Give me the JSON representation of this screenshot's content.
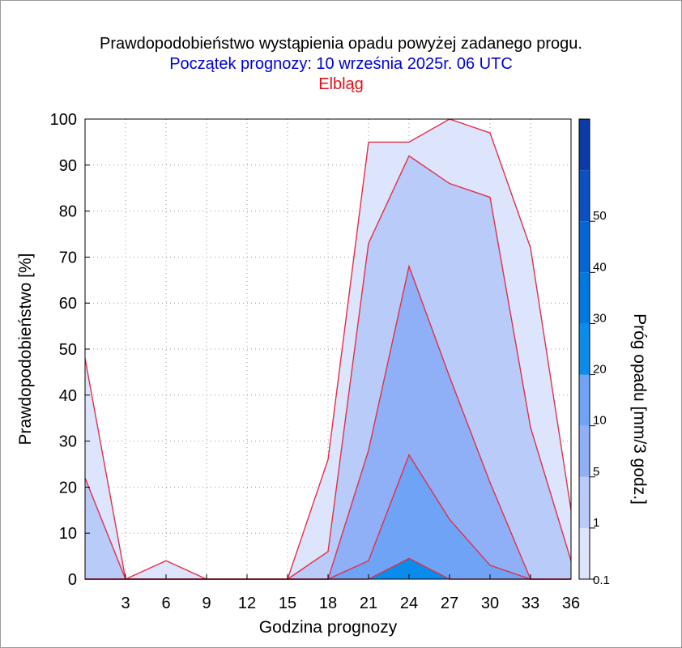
{
  "chart_data": {
    "type": "area",
    "title": "Prawdopodobieństwo wystąpienia opadu powyżej zadanego progu.",
    "subtitle": "Początek prognozy: 10 września 2025r. 06 UTC",
    "location": "Elbląg",
    "xlabel": "Godzina prognozy",
    "ylabel": "Prawdopodobieństwo [%]",
    "colorbar_label": "Próg opadu [mm/3 godz.]",
    "xlim": [
      0,
      36
    ],
    "ylim": [
      0,
      100
    ],
    "x_ticks": [
      3,
      6,
      9,
      12,
      15,
      18,
      21,
      24,
      27,
      30,
      33,
      36
    ],
    "y_ticks": [
      0,
      10,
      20,
      30,
      40,
      50,
      60,
      70,
      80,
      90,
      100
    ],
    "grid": true,
    "x": [
      0,
      3,
      6,
      9,
      12,
      15,
      18,
      21,
      24,
      27,
      30,
      33,
      36
    ],
    "series": [
      {
        "name": "0.1",
        "color": "#dce5fb",
        "values": [
          48,
          0,
          4,
          0,
          0,
          0,
          26,
          95,
          95,
          100,
          97,
          72,
          15
        ]
      },
      {
        "name": "1",
        "color": "#b8cbf9",
        "values": [
          22,
          0,
          0,
          0,
          0,
          0,
          6,
          73,
          92,
          86,
          83,
          33,
          4
        ]
      },
      {
        "name": "5",
        "color": "#8fb0f7",
        "values": [
          0,
          0,
          0,
          0,
          0,
          0,
          0,
          28,
          68,
          44,
          21,
          0,
          0
        ]
      },
      {
        "name": "10",
        "color": "#6fa3f6",
        "values": [
          0,
          0,
          0,
          0,
          0,
          0,
          0,
          4,
          27,
          13,
          3,
          0,
          0
        ]
      },
      {
        "name": "20",
        "color": "#0a8ceb",
        "values": [
          0,
          0,
          0,
          0,
          0,
          0,
          0,
          0,
          4.5,
          0,
          0,
          0,
          0
        ]
      }
    ],
    "colorbar": {
      "labels": [
        "0.1",
        "1",
        "5",
        "10",
        "20",
        "30",
        "40",
        "50"
      ],
      "colors": [
        "#dce5fb",
        "#b8cbf9",
        "#8fb0f7",
        "#6fa3f6",
        "#0a8ceb",
        "#0078e0",
        "#0565d2",
        "#0a50c0",
        "#0a3ca8"
      ]
    },
    "outline_color": "#e0304a"
  }
}
